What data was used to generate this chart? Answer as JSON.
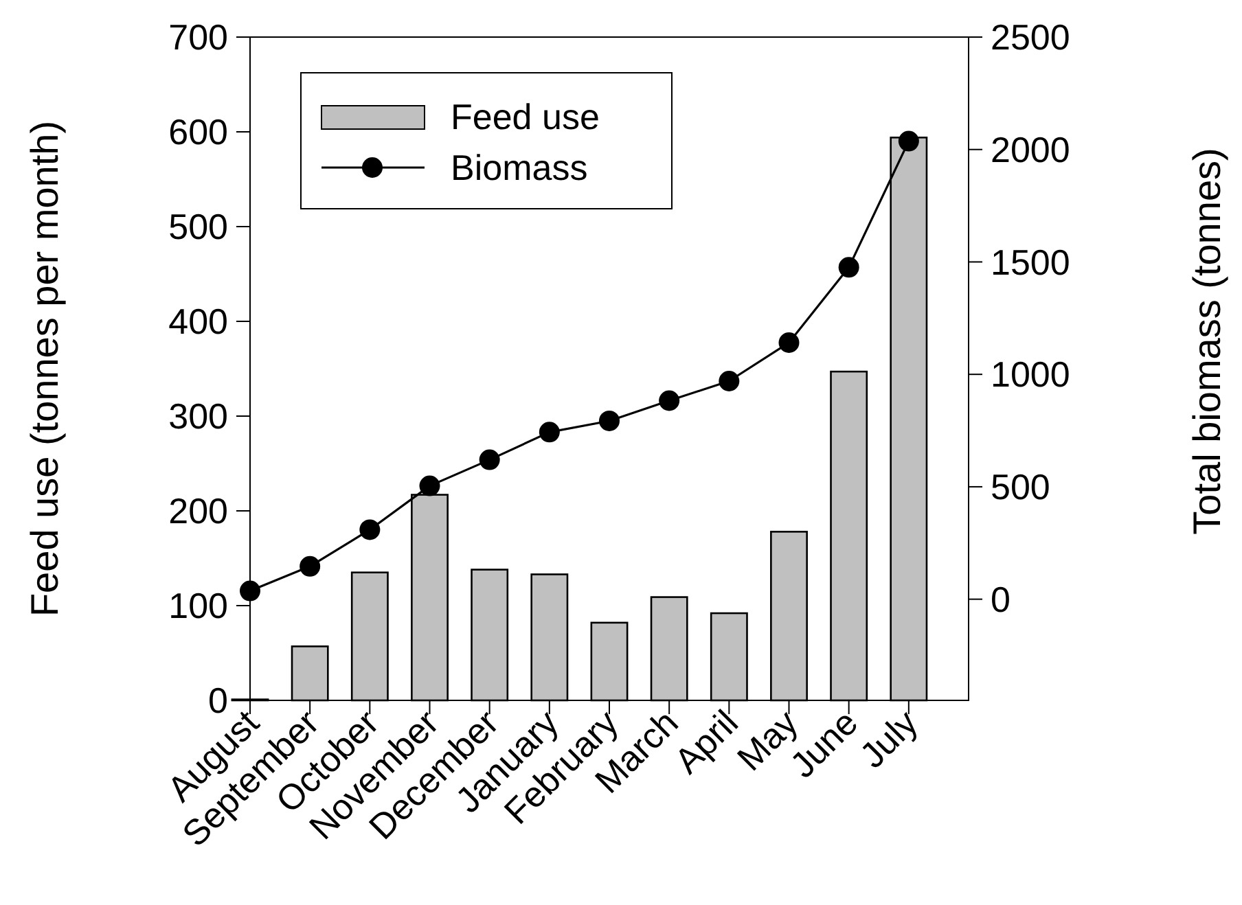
{
  "chart_data": {
    "type": "bar",
    "ylabel": "Feed use (tonnes per month)",
    "y2label": "Total biomass (tonnes)",
    "categories": [
      "August",
      "September",
      "October",
      "November",
      "December",
      "January",
      "February",
      "March",
      "April",
      "May",
      "June",
      "July"
    ],
    "series": [
      {
        "name": "Feed use",
        "color": "#c0c0c0",
        "values": [
          1,
          57,
          135,
          217,
          138,
          133,
          82,
          109,
          92,
          178,
          347,
          594
        ]
      },
      {
        "name": "Biomass",
        "type": "line",
        "axis": "y2",
        "color": "#000000",
        "marker": "circle",
        "line_style": "solid",
        "values": [
          37,
          146,
          309,
          504,
          620,
          743,
          793,
          883,
          970,
          1141,
          1476,
          2037
        ]
      }
    ],
    "ylim": [
      0,
      700
    ],
    "yticks": [
      0,
      100,
      200,
      300,
      400,
      500,
      600,
      700
    ],
    "y2lim": [
      -450,
      2500
    ],
    "y2ticks": [
      0,
      500,
      1000,
      1500,
      2000,
      2500
    ],
    "legend": "top left",
    "grid": false
  }
}
